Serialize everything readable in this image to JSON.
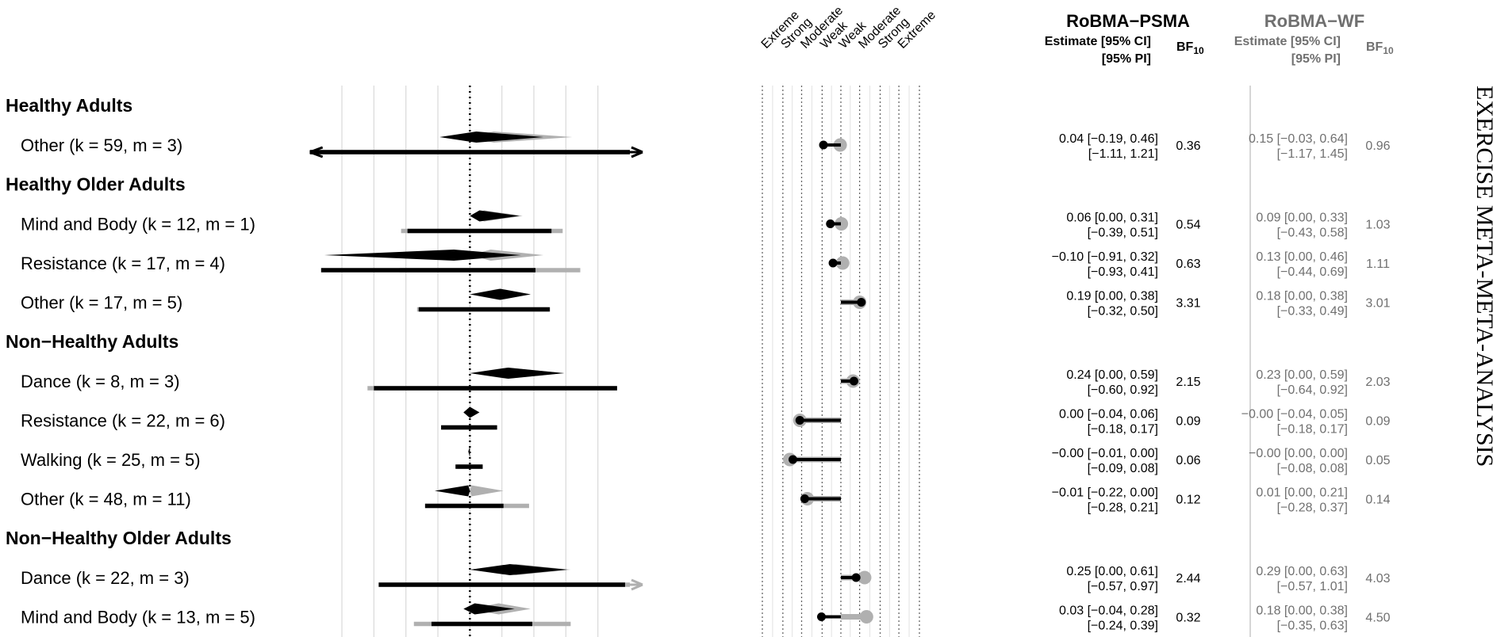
{
  "side_title": "EXERCISE META-META-ANALYSIS",
  "headers": {
    "psma_title": "RoBMA−PSMA",
    "wf_title": "RoBMA−WF",
    "estimate_label": "Estimate [95% CI]",
    "pi_label": "[95% PI]",
    "bf_label": "BF",
    "bf_sub": "10"
  },
  "evidence_labels": [
    "Extreme",
    "Strong",
    "Moderate",
    "Weak",
    "Weak",
    "Moderate",
    "Strong",
    "Extreme"
  ],
  "colors": {
    "psma": "#000000",
    "wf": "#b0b0b0",
    "wf_text": "#707070"
  },
  "chart_data": {
    "type": "forest",
    "forest_xlim": [
      -0.8,
      1.0
    ],
    "forest_ticks": [
      -0.8,
      -0.6,
      -0.4,
      -0.2,
      0.0,
      0.2,
      0.4,
      0.6,
      0.8
    ],
    "reference_line": 0,
    "bf_scale": "log10",
    "bf_thresholds": [
      0.01,
      0.0333,
      0.1,
      0.3333,
      1,
      3,
      10,
      30,
      100
    ],
    "groups": [
      {
        "name": "Healthy Adults",
        "rows": [
          {
            "label": "Other (k = 59, m = 3)",
            "psma": {
              "est": 0.04,
              "ci": [
                -0.19,
                0.46
              ],
              "pi": [
                -1.11,
                1.21
              ],
              "bf": 0.36,
              "est_text": "0.04 [−0.19, 0.46]",
              "pi_text": "[−1.11, 1.21]",
              "bf_text": "0.36"
            },
            "wf": {
              "est": 0.15,
              "ci": [
                -0.03,
                0.64
              ],
              "pi": [
                -1.17,
                1.45
              ],
              "bf": 0.96,
              "est_text": "0.15 [−0.03, 0.64]",
              "pi_text": "[−1.17, 1.45]",
              "bf_text": "0.96"
            }
          }
        ]
      },
      {
        "name": "Healthy Older Adults",
        "rows": [
          {
            "label": "Mind and Body (k = 12, m = 1)",
            "psma": {
              "est": 0.06,
              "ci": [
                0.0,
                0.31
              ],
              "pi": [
                -0.39,
                0.51
              ],
              "bf": 0.54,
              "est_text": "0.06 [0.00, 0.31]",
              "pi_text": "[−0.39, 0.51]",
              "bf_text": "0.54"
            },
            "wf": {
              "est": 0.09,
              "ci": [
                0.0,
                0.33
              ],
              "pi": [
                -0.43,
                0.58
              ],
              "bf": 1.03,
              "est_text": "0.09 [0.00, 0.33]",
              "pi_text": "[−0.43, 0.58]",
              "bf_text": "1.03"
            }
          },
          {
            "label": "Resistance (k = 17, m = 4)",
            "psma": {
              "est": -0.1,
              "ci": [
                -0.91,
                0.32
              ],
              "pi": [
                -0.93,
                0.41
              ],
              "bf": 0.63,
              "est_text": "−0.10 [−0.91, 0.32]",
              "pi_text": "[−0.93, 0.41]",
              "bf_text": "0.63"
            },
            "wf": {
              "est": 0.13,
              "ci": [
                0.0,
                0.46
              ],
              "pi": [
                -0.44,
                0.69
              ],
              "bf": 1.11,
              "est_text": "0.13 [0.00, 0.46]",
              "pi_text": "[−0.44, 0.69]",
              "bf_text": "1.11"
            }
          },
          {
            "label": "Other (k = 17, m = 5)",
            "psma": {
              "est": 0.19,
              "ci": [
                0.0,
                0.38
              ],
              "pi": [
                -0.32,
                0.5
              ],
              "bf": 3.31,
              "est_text": "0.19 [0.00, 0.38]",
              "pi_text": "[−0.32, 0.50]",
              "bf_text": "3.31"
            },
            "wf": {
              "est": 0.18,
              "ci": [
                0.0,
                0.38
              ],
              "pi": [
                -0.33,
                0.49
              ],
              "bf": 3.01,
              "est_text": "0.18 [0.00, 0.38]",
              "pi_text": "[−0.33, 0.49]",
              "bf_text": "3.01"
            }
          }
        ]
      },
      {
        "name": "Non−Healthy Adults",
        "rows": [
          {
            "label": "Dance (k = 8, m = 3)",
            "psma": {
              "est": 0.24,
              "ci": [
                0.0,
                0.59
              ],
              "pi": [
                -0.6,
                0.92
              ],
              "bf": 2.15,
              "est_text": "0.24 [0.00, 0.59]",
              "pi_text": "[−0.60, 0.92]",
              "bf_text": "2.15"
            },
            "wf": {
              "est": 0.23,
              "ci": [
                0.0,
                0.59
              ],
              "pi": [
                -0.64,
                0.92
              ],
              "bf": 2.03,
              "est_text": "0.23 [0.00, 0.59]",
              "pi_text": "[−0.64, 0.92]",
              "bf_text": "2.03"
            }
          },
          {
            "label": "Resistance (k = 22, m = 6)",
            "psma": {
              "est": 0.0,
              "ci": [
                -0.04,
                0.06
              ],
              "pi": [
                -0.18,
                0.17
              ],
              "bf": 0.09,
              "est_text": "0.00 [−0.04, 0.06]",
              "pi_text": "[−0.18, 0.17]",
              "bf_text": "0.09"
            },
            "wf": {
              "est": 0.0,
              "ci": [
                -0.04,
                0.05
              ],
              "pi": [
                -0.18,
                0.17
              ],
              "bf": 0.09,
              "est_text": "−0.00 [−0.04, 0.05]",
              "pi_text": "[−0.18, 0.17]",
              "bf_text": "0.09"
            }
          },
          {
            "label": "Walking (k = 25, m = 5)",
            "psma": {
              "est": 0.0,
              "ci": [
                -0.01,
                0.0
              ],
              "pi": [
                -0.09,
                0.08
              ],
              "bf": 0.06,
              "est_text": "−0.00 [−0.01, 0.00]",
              "pi_text": "[−0.09, 0.08]",
              "bf_text": "0.06"
            },
            "wf": {
              "est": 0.0,
              "ci": [
                0.0,
                0.0
              ],
              "pi": [
                -0.08,
                0.08
              ],
              "bf": 0.05,
              "est_text": "−0.00 [0.00, 0.00]",
              "pi_text": "[−0.08, 0.08]",
              "bf_text": "0.05"
            }
          },
          {
            "label": "Other (k = 48, m = 11)",
            "psma": {
              "est": -0.01,
              "ci": [
                -0.22,
                0.0
              ],
              "pi": [
                -0.28,
                0.21
              ],
              "bf": 0.12,
              "est_text": "−0.01 [−0.22, 0.00]",
              "pi_text": "[−0.28, 0.21]",
              "bf_text": "0.12"
            },
            "wf": {
              "est": 0.01,
              "ci": [
                0.0,
                0.21
              ],
              "pi": [
                -0.28,
                0.37
              ],
              "bf": 0.14,
              "est_text": "0.01 [0.00, 0.21]",
              "pi_text": "[−0.28, 0.37]",
              "bf_text": "0.14"
            }
          }
        ]
      },
      {
        "name": "Non−Healthy Older Adults",
        "rows": [
          {
            "label": "Dance (k = 22, m = 3)",
            "psma": {
              "est": 0.25,
              "ci": [
                0.0,
                0.61
              ],
              "pi": [
                -0.57,
                0.97
              ],
              "bf": 2.44,
              "est_text": "0.25 [0.00, 0.61]",
              "pi_text": "[−0.57, 0.97]",
              "bf_text": "2.44"
            },
            "wf": {
              "est": 0.29,
              "ci": [
                0.0,
                0.63
              ],
              "pi": [
                -0.57,
                1.01
              ],
              "bf": 4.03,
              "est_text": "0.29 [0.00, 0.63]",
              "pi_text": "[−0.57, 1.01]",
              "bf_text": "4.03"
            }
          },
          {
            "label": "Mind and Body (k = 13, m = 5)",
            "psma": {
              "est": 0.03,
              "ci": [
                -0.04,
                0.28
              ],
              "pi": [
                -0.24,
                0.39
              ],
              "bf": 0.32,
              "est_text": "0.03 [−0.04, 0.28]",
              "pi_text": "[−0.24, 0.39]",
              "bf_text": "0.32"
            },
            "wf": {
              "est": 0.18,
              "ci": [
                0.0,
                0.38
              ],
              "pi": [
                -0.35,
                0.63
              ],
              "bf": 4.5,
              "est_text": "0.18 [0.00, 0.38]",
              "pi_text": "[−0.35, 0.63]",
              "bf_text": "4.50"
            }
          }
        ]
      }
    ]
  }
}
